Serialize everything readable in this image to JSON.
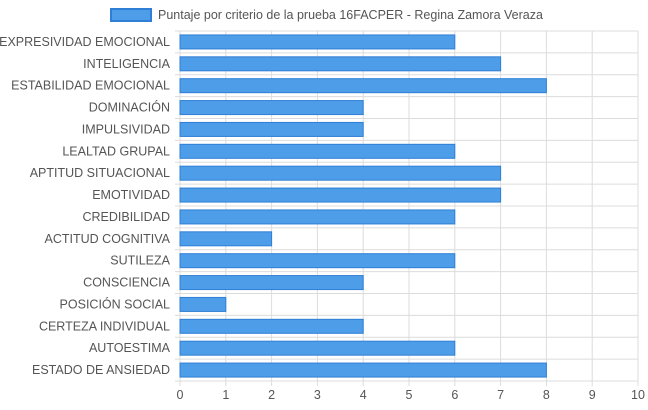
{
  "chart_data": {
    "type": "bar",
    "orientation": "horizontal",
    "categories": [
      "EXPRESIVIDAD EMOCIONAL",
      "INTELIGENCIA",
      "ESTABILIDAD EMOCIONAL",
      "DOMINACIÓN",
      "IMPULSIVIDAD",
      "LEALTAD GRUPAL",
      "APTITUD SITUACIONAL",
      "EMOTIVIDAD",
      "CREDIBILIDAD",
      "ACTITUD COGNITIVA",
      "SUTILEZA",
      "CONSCIENCIA",
      "POSICIÓN SOCIAL",
      "CERTEZA INDIVIDUAL",
      "AUTOESTIMA",
      "ESTADO DE ANSIEDAD"
    ],
    "series": [
      {
        "name": "Puntaje por criterio de la prueba 16FACPER - Regina Zamora Veraza",
        "values": [
          6,
          7,
          8,
          4,
          4,
          6,
          7,
          7,
          6,
          2,
          6,
          4,
          1,
          4,
          6,
          8
        ]
      }
    ],
    "xlim": [
      0,
      10
    ],
    "x_ticks": [
      "0",
      "1",
      "2",
      "3",
      "4",
      "5",
      "6",
      "7",
      "8",
      "9",
      "10"
    ],
    "grid": true,
    "legend_position": "top",
    "colors": {
      "bar_fill": "#4d9de8",
      "bar_stroke": "#2f7fd6",
      "grid": "#dcdcdc",
      "text": "#555555"
    }
  }
}
